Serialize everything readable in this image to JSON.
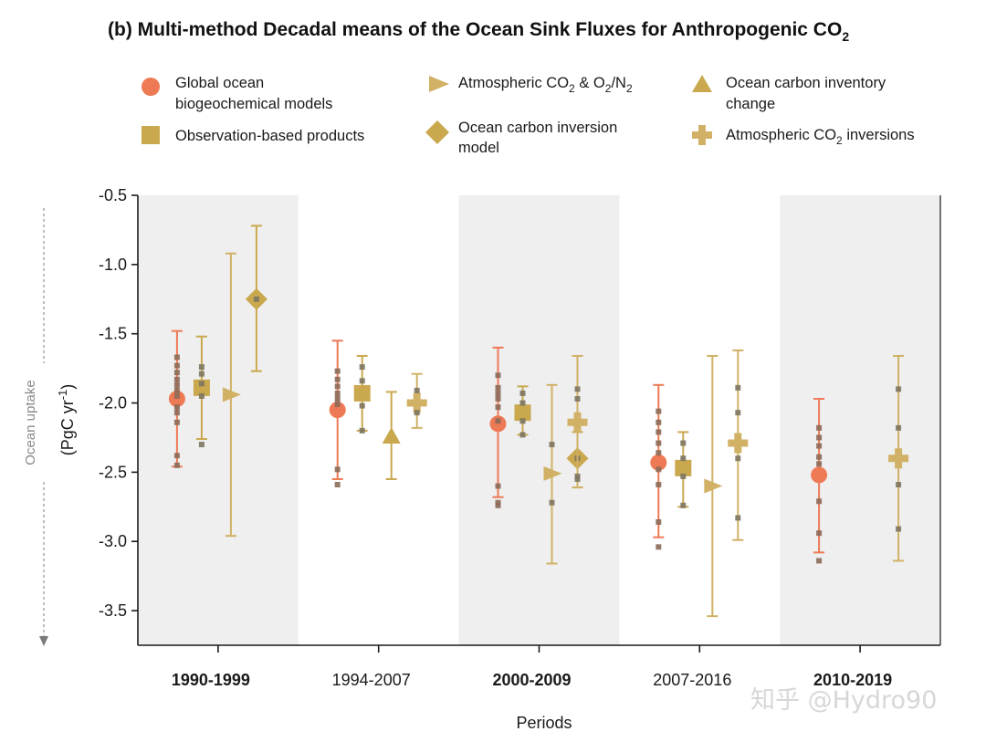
{
  "chart_data": {
    "type": "scatter",
    "title": "(b) Multi-method Decadal means of the Ocean Sink Fluxes for Anthropogenic CO",
    "title_subscript": "2",
    "xlabel": "Periods",
    "ylabel_prefix": "(PgC yr",
    "ylabel_superscript": "-1",
    "ylabel_suffix": ")",
    "side_label": "Ocean uptake",
    "ylim": [
      -3.75,
      -0.5
    ],
    "yticks": [
      -0.5,
      -1.0,
      -1.5,
      -2.0,
      -2.5,
      -3.0,
      -3.5
    ],
    "ytick_labels": [
      "-0.5",
      "-1.0",
      "-1.5",
      "-2.0",
      "-2.5",
      "-3.0",
      "-3.5"
    ],
    "categories": [
      "1990-1999",
      "1994-2007",
      "2000-2009",
      "2007-2016",
      "2010-2019"
    ],
    "categories_bold": [
      true,
      false,
      true,
      false,
      true
    ],
    "shaded_periods": [
      true,
      false,
      true,
      false,
      true
    ],
    "legend_placement": "top",
    "legend": [
      {
        "key": "gobm",
        "lines": [
          "Global ocean",
          "biogeochemical models"
        ]
      },
      {
        "key": "obs",
        "lines": [
          "Observation-based products"
        ]
      },
      {
        "key": "atmo2",
        "label_main": "Atmospheric CO",
        "label_sub1": "2",
        "label_mid": " & O",
        "label_sub2": "2",
        "label_mid2": "/N",
        "label_sub3": "2"
      },
      {
        "key": "inv",
        "lines": [
          "Ocean carbon inversion",
          "model"
        ]
      },
      {
        "key": "inventory",
        "lines": [
          "Ocean carbon inventory",
          "change"
        ]
      },
      {
        "key": "atminv",
        "label_main": "Atmospheric CO",
        "label_sub1": "2",
        "label_mid": " inversions"
      }
    ],
    "series": [
      {
        "key": "gobm",
        "name": "Global ocean biogeochemical models",
        "marker": "circle",
        "color": "#ee7a55",
        "point_color": "#8c6a58",
        "points": [
          {
            "period": "1990-1999",
            "mean": -1.97,
            "low": -2.46,
            "high": -1.48,
            "members": [
              -1.67,
              -1.73,
              -1.78,
              -1.83,
              -1.87,
              -1.91,
              -1.95,
              -2.03,
              -2.07,
              -2.14,
              -2.38,
              -2.45
            ]
          },
          {
            "period": "1994-2007",
            "mean": -2.05,
            "low": -2.55,
            "high": -1.55,
            "members": [
              -1.77,
              -1.83,
              -1.88,
              -1.93,
              -1.97,
              -2.01,
              -2.48,
              -2.59
            ]
          },
          {
            "period": "2000-2009",
            "mean": -2.15,
            "low": -2.68,
            "high": -1.6,
            "members": [
              -1.8,
              -1.89,
              -1.93,
              -1.97,
              -2.03,
              -2.13,
              -2.6,
              -2.72,
              -2.74
            ]
          },
          {
            "period": "2007-2016",
            "mean": -2.43,
            "low": -2.97,
            "high": -1.87,
            "members": [
              -2.06,
              -2.14,
              -2.21,
              -2.29,
              -2.36,
              -2.48,
              -2.59,
              -2.86,
              -3.04
            ]
          },
          {
            "period": "2010-2019",
            "mean": -2.52,
            "low": -3.08,
            "high": -1.97,
            "members": [
              -2.18,
              -2.25,
              -2.31,
              -2.39,
              -2.44,
              -2.71,
              -2.94,
              -3.14
            ]
          }
        ]
      },
      {
        "key": "obs",
        "name": "Observation-based products",
        "marker": "square",
        "color": "#c9a84e",
        "point_color": "#7d7560",
        "points": [
          {
            "period": "1990-1999",
            "mean": -1.89,
            "low": -2.26,
            "high": -1.52,
            "members": [
              -1.74,
              -1.79,
              -1.86,
              -1.95,
              -2.3
            ]
          },
          {
            "period": "1994-2007",
            "mean": -1.93,
            "low": -2.2,
            "high": -1.66,
            "members": [
              -1.74,
              -1.84,
              -2.02,
              -2.2
            ]
          },
          {
            "period": "2000-2009",
            "mean": -2.07,
            "low": -2.23,
            "high": -1.88,
            "members": [
              -1.93,
              -2.0,
              -2.13,
              -2.23
            ]
          },
          {
            "period": "2007-2016",
            "mean": -2.47,
            "low": -2.75,
            "high": -2.21,
            "members": [
              -2.29,
              -2.4,
              -2.53,
              -2.74
            ]
          }
        ]
      },
      {
        "key": "atmo2",
        "name": "Atmospheric CO2 & O2/N2",
        "marker": "triangle-right",
        "color": "#d1b165",
        "point_color": "#7d7560",
        "points": [
          {
            "period": "1990-1999",
            "mean": -1.94,
            "low": -2.96,
            "high": -0.92,
            "members": []
          },
          {
            "period": "2000-2009",
            "mean": -2.51,
            "low": -3.16,
            "high": -1.87,
            "members": [
              -2.3,
              -2.72
            ]
          },
          {
            "period": "2007-2016",
            "mean": -2.6,
            "low": -3.54,
            "high": -1.66,
            "members": []
          }
        ]
      },
      {
        "key": "inventory",
        "name": "Ocean carbon inventory change",
        "marker": "triangle-up",
        "color": "#c9a84e",
        "point_color": "#7d7560",
        "points": [
          {
            "period": "1994-2007",
            "mean": -2.24,
            "low": -2.55,
            "high": -1.92,
            "members": []
          }
        ]
      },
      {
        "key": "inv",
        "name": "Ocean carbon inversion model",
        "marker": "diamond",
        "color": "#c9a84e",
        "point_color": "#7d7560",
        "points": [
          {
            "period": "1990-1999",
            "mean": -1.25,
            "low": -1.77,
            "high": -0.72,
            "members": [
              -1.25
            ]
          },
          {
            "period": "2000-2009",
            "mean": -2.4,
            "low": -2.61,
            "high": -2.21,
            "members": [
              -2.4
            ]
          }
        ]
      },
      {
        "key": "atminv",
        "name": "Atmospheric CO2 inversions",
        "marker": "plus",
        "color": "#d1b165",
        "point_color": "#7d7560",
        "points": [
          {
            "period": "1994-2007",
            "mean": -2.0,
            "low": -2.18,
            "high": -1.79,
            "members": [
              -1.91,
              -2.07
            ]
          },
          {
            "period": "2000-2009",
            "mean": -2.14,
            "low": -2.61,
            "high": -1.66,
            "members": [
              -1.9,
              -1.97,
              -2.53,
              -2.55
            ]
          },
          {
            "period": "2007-2016",
            "mean": -2.29,
            "low": -2.99,
            "high": -1.62,
            "members": [
              -1.89,
              -2.07,
              -2.4,
              -2.83
            ]
          },
          {
            "period": "2010-2019",
            "mean": -2.4,
            "low": -3.14,
            "high": -1.66,
            "members": [
              -1.9,
              -2.18,
              -2.59,
              -2.91
            ]
          }
        ]
      }
    ]
  },
  "watermark": "知乎 @Hydro90"
}
